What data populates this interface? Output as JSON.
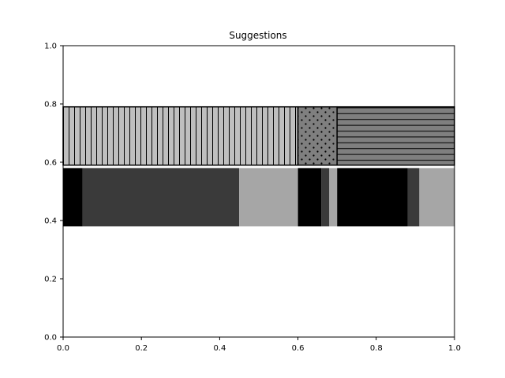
{
  "chart_data": {
    "type": "bar",
    "orientation": "horizontal",
    "stacked": true,
    "title": "Suggestions",
    "xlabel": "",
    "ylabel": "",
    "xlim": [
      0,
      1
    ],
    "ylim": [
      0,
      1
    ],
    "xticks": [
      "0.0",
      "0.2",
      "0.4",
      "0.6",
      "0.8",
      "1.0"
    ],
    "yticks": [
      "0.0",
      "0.2",
      "0.4",
      "0.6",
      "0.8",
      "1.0"
    ],
    "grid": false,
    "legend": "none",
    "rows": [
      {
        "y_range": [
          0.59,
          0.79
        ],
        "segments": [
          {
            "start": 0.0,
            "end": 0.6,
            "color": "#bfbfbf",
            "hatch": "vertical"
          },
          {
            "start": 0.6,
            "end": 0.7,
            "color": "#7f7f7f",
            "hatch": "dots"
          },
          {
            "start": 0.7,
            "end": 1.0,
            "color": "#7f7f7f",
            "hatch": "horizontal"
          }
        ]
      },
      {
        "y_range": [
          0.38,
          0.58
        ],
        "segments": [
          {
            "start": 0.0,
            "end": 0.05,
            "color": "#000000",
            "hatch": "none"
          },
          {
            "start": 0.05,
            "end": 0.45,
            "color": "#3a3a3a",
            "hatch": "none"
          },
          {
            "start": 0.45,
            "end": 0.6,
            "color": "#a6a6a6",
            "hatch": "none"
          },
          {
            "start": 0.6,
            "end": 0.66,
            "color": "#000000",
            "hatch": "none"
          },
          {
            "start": 0.66,
            "end": 0.68,
            "color": "#3a3a3a",
            "hatch": "none"
          },
          {
            "start": 0.68,
            "end": 0.7,
            "color": "#a6a6a6",
            "hatch": "none"
          },
          {
            "start": 0.7,
            "end": 0.88,
            "color": "#000000",
            "hatch": "none"
          },
          {
            "start": 0.88,
            "end": 0.91,
            "color": "#3a3a3a",
            "hatch": "none"
          },
          {
            "start": 0.91,
            "end": 1.0,
            "color": "#a6a6a6",
            "hatch": "none"
          }
        ]
      }
    ]
  }
}
